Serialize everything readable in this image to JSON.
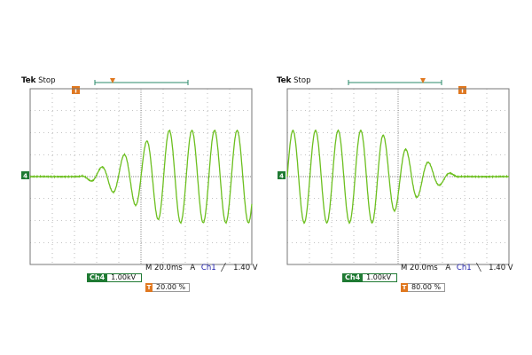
{
  "scopes": [
    {
      "brand": "Tek",
      "state": "Stop",
      "timebase": "M 20.0ms",
      "acq_mode": "A",
      "trigger_channel": "Ch1",
      "trigger_slope": "rising",
      "trigger_level": "1.40 V",
      "channel_label": "Ch4",
      "channel_scale": "1.00kV",
      "trigger_position": "20.00 %"
    },
    {
      "brand": "Tek",
      "state": "Stop",
      "timebase": "M 20.0ms",
      "acq_mode": "A",
      "trigger_channel": "Ch1",
      "trigger_slope": "falling",
      "trigger_level": "1.40 V",
      "channel_label": "Ch4",
      "channel_scale": "1.00kV",
      "trigger_position": "80.00 %"
    }
  ],
  "colors": {
    "trace": "#6cbf1f",
    "channel_marker": "#1f7a33",
    "trigger_marker": "#e07820",
    "bracket": "#2a8a6a",
    "grid": "#8a8a8a",
    "ch1_text": "#1a1aa8"
  },
  "icons": [
    "trigger-marker-icon",
    "channel4-ground-marker-icon",
    "rising-edge-icon",
    "falling-edge-icon"
  ]
}
